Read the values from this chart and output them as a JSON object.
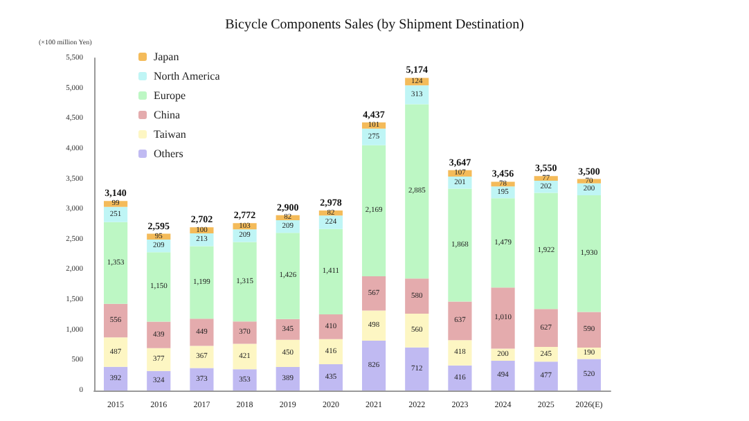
{
  "chart_data": {
    "type": "bar",
    "stacked": true,
    "title": "Bicycle Components Sales (by Shipment Destination)",
    "ylabel": "(×100 million Yen)",
    "categories": [
      "2015",
      "2016",
      "2017",
      "2018",
      "2019",
      "2020",
      "2021",
      "2022",
      "2023",
      "2024",
      "2025",
      "2026(E)"
    ],
    "series": [
      {
        "name": "Others",
        "color": "#c0baf2",
        "values": [
          392,
          324,
          373,
          353,
          389,
          435,
          826,
          712,
          416,
          494,
          477,
          520
        ],
        "value_labels": [
          "392",
          "324",
          "373",
          "353",
          "389",
          "435",
          "826",
          "712",
          "416",
          "494",
          "477",
          "520"
        ]
      },
      {
        "name": "Taiwan",
        "color": "#fdf6c3",
        "values": [
          487,
          377,
          367,
          421,
          450,
          416,
          498,
          560,
          418,
          200,
          245,
          190
        ],
        "value_labels": [
          "487",
          "377",
          "367",
          "421",
          "450",
          "416",
          "498",
          "560",
          "418",
          "200",
          "245",
          "190"
        ]
      },
      {
        "name": "China",
        "color": "#e4abad",
        "values": [
          556,
          439,
          449,
          370,
          345,
          410,
          567,
          580,
          637,
          1010,
          627,
          590
        ],
        "value_labels": [
          "556",
          "439",
          "449",
          "370",
          "345",
          "410",
          "567",
          "580",
          "637",
          "1,010",
          "627",
          "590"
        ]
      },
      {
        "name": "Europe",
        "color": "#bdf7c4",
        "values": [
          1353,
          1150,
          1199,
          1315,
          1426,
          1411,
          2169,
          2885,
          1868,
          1479,
          1922,
          1930
        ],
        "value_labels": [
          "1,353",
          "1,150",
          "1,199",
          "1,315",
          "1,426",
          "1,411",
          "2,169",
          "2,885",
          "1,868",
          "1,479",
          "1,922",
          "1,930"
        ]
      },
      {
        "name": "North America",
        "color": "#bff5f5",
        "values": [
          251,
          209,
          213,
          209,
          209,
          224,
          275,
          313,
          201,
          195,
          202,
          200
        ],
        "value_labels": [
          "251",
          "209",
          "213",
          "209",
          "209",
          "224",
          "275",
          "313",
          "201",
          "195",
          "202",
          "200"
        ]
      },
      {
        "name": "Japan",
        "color": "#f4bb5a",
        "values": [
          99,
          95,
          100,
          103,
          82,
          82,
          101,
          124,
          107,
          78,
          77,
          70
        ],
        "value_labels": [
          "99",
          "95",
          "100",
          "103",
          "82",
          "82",
          "101",
          "124",
          "107",
          "78",
          "77",
          "70"
        ]
      }
    ],
    "totals": [
      "3,140",
      "2,595",
      "2,702",
      "2,772",
      "2,900",
      "2,978",
      "4,437",
      "5,174",
      "3,647",
      "3,456",
      "3,550",
      "3,500"
    ],
    "ylim": [
      0,
      5500
    ],
    "yticks": [
      0,
      500,
      {
        "value": 1000,
        "label": "1,000"
      },
      {
        "value": 1500,
        "label": "1,500"
      },
      {
        "value": 2000,
        "label": "2,000"
      },
      {
        "value": 2500,
        "label": "2,500"
      },
      {
        "value": 3000,
        "label": "3,000"
      },
      {
        "value": 3500,
        "label": "3,500"
      },
      {
        "value": 4000,
        "label": "4,000"
      },
      {
        "value": 4500,
        "label": "4,500"
      },
      {
        "value": 5000,
        "label": "5,000"
      },
      {
        "value": 5500,
        "label": "5,500"
      }
    ],
    "legend": "top left",
    "grid": false
  }
}
